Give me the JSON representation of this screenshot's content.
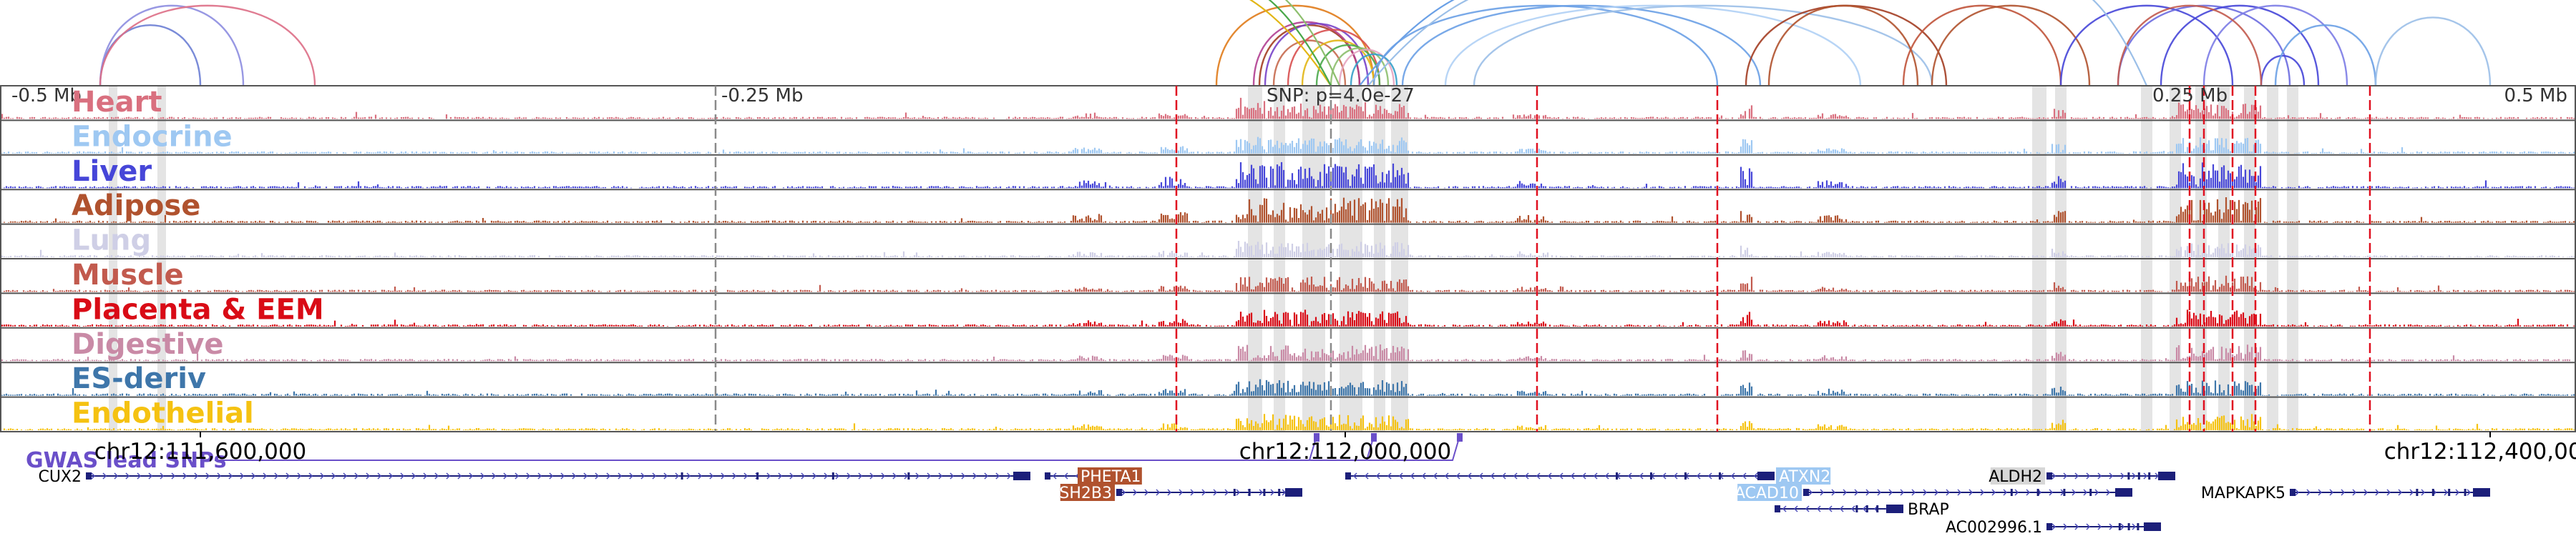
{
  "chart_data": {
    "type": "genome-browser",
    "chromosome": "chr12",
    "x_range": [
      111530000,
      112430000
    ],
    "axis_coordinate_labels": [
      {
        "pos": 111600000,
        "text": "chr12:111,600,000"
      },
      {
        "pos": 112000000,
        "text": "chr12:112,000,000"
      },
      {
        "pos": 112400000,
        "text": "chr12:112,400,000"
      }
    ],
    "relative_scale_labels": [
      {
        "pos": 111532000,
        "text": "-0.5 Mb"
      },
      {
        "pos": 111780000,
        "text": "-0.25 Mb"
      },
      {
        "pos": 112280000,
        "text": "0.25 Mb"
      },
      {
        "pos": 112425000,
        "text": "0.5 Mb"
      }
    ],
    "lead_snp_annotation": {
      "pos": 112030000,
      "text": "SNP: p=4.0e-27"
    },
    "tracks": [
      {
        "name": "Heart",
        "color": "#d9707f"
      },
      {
        "name": "Endocrine",
        "color": "#9ec8f2"
      },
      {
        "name": "Liver",
        "color": "#4646d8"
      },
      {
        "name": "Adipose",
        "color": "#b0522e"
      },
      {
        "name": "Lung",
        "color": "#cfcfe6"
      },
      {
        "name": "Muscle",
        "color": "#c25a4e"
      },
      {
        "name": "Placenta & EEM",
        "color": "#d90b16"
      },
      {
        "name": "Digestive",
        "color": "#c98aa6"
      },
      {
        "name": "ES-deriv",
        "color": "#3e76aa"
      },
      {
        "name": "Endothelial",
        "color": "#f5c211"
      }
    ],
    "red_dashed_lines": [
      111941000,
      112067000,
      112130000,
      112295000,
      112300000,
      112310000,
      112318000,
      112358000
    ],
    "gray_dashed_lines": [
      111780000,
      111995000
    ],
    "highlight_bands": [
      [
        111966000,
        111971000
      ],
      [
        111975000,
        111979000
      ],
      [
        111985000,
        111993000
      ],
      [
        111998000,
        112006000
      ],
      [
        112010000,
        112014000
      ],
      [
        112016000,
        112022000
      ],
      [
        112240000,
        112245000
      ],
      [
        112248000,
        112252000
      ],
      [
        112278000,
        112282000
      ],
      [
        112288000,
        112292000
      ],
      [
        112297000,
        112301000
      ],
      [
        112305000,
        112309000
      ],
      [
        112314000,
        112318000
      ],
      [
        112322000,
        112326000
      ],
      [
        112329000,
        112333000
      ],
      [
        111568000,
        111571000
      ],
      [
        111585000,
        111588000
      ]
    ],
    "gwas_lead_snps": {
      "label": "GWAS lead SNPs",
      "positions": [
        111990000,
        112010000,
        112040000
      ]
    },
    "genes": [
      {
        "name": "CUX2",
        "start": 111560000,
        "end": 111890000,
        "row": 0,
        "strand": "+",
        "label_side": "left",
        "highlight": ""
      },
      {
        "name": "PHETA1",
        "start": 111895000,
        "end": 111925000,
        "row": 0,
        "strand": "-",
        "label_side": "inside",
        "highlight": "#b0522e"
      },
      {
        "name": "SH2B3",
        "start": 111920000,
        "end": 111985000,
        "row": 1,
        "strand": "+",
        "label_side": "left",
        "highlight": "#b0522e"
      },
      {
        "name": "ATXN2",
        "start": 112000000,
        "end": 112150000,
        "row": 0,
        "strand": "-",
        "label_side": "right",
        "highlight": "#9ec8f2"
      },
      {
        "name": "ACAD10",
        "start": 112160000,
        "end": 112275000,
        "row": 1,
        "strand": "+",
        "label_side": "left",
        "highlight": "#9ec8f2"
      },
      {
        "name": "BRAP",
        "start": 112150000,
        "end": 112195000,
        "row": 2,
        "strand": "-",
        "label_side": "right",
        "highlight": ""
      },
      {
        "name": "ALDH2",
        "start": 112245000,
        "end": 112290000,
        "row": 0,
        "strand": "+",
        "label_side": "left",
        "highlight": "#d7d7d7"
      },
      {
        "name": "MAPKAPK5",
        "start": 112330000,
        "end": 112400000,
        "row": 1,
        "strand": "+",
        "label_side": "left",
        "highlight": ""
      },
      {
        "name": "AC002996.1",
        "start": 112245000,
        "end": 112285000,
        "row": 3,
        "strand": "+",
        "label_side": "left",
        "highlight": ""
      }
    ],
    "loops": [
      {
        "start": 111565000,
        "end": 111600000,
        "color": "#6b7ed4"
      },
      {
        "start": 111565000,
        "end": 111615000,
        "color": "#8d8de0"
      },
      {
        "start": 111565000,
        "end": 111640000,
        "color": "#dd6e86"
      },
      {
        "start": 111955000,
        "end": 112010000,
        "color": "#e07b1a"
      },
      {
        "start": 111970000,
        "end": 112005000,
        "color": "#a33d22"
      },
      {
        "start": 111975000,
        "end": 112000000,
        "color": "#c76a4f"
      },
      {
        "start": 111968000,
        "end": 112005000,
        "color": "#b13f91"
      },
      {
        "start": 111972000,
        "end": 112008000,
        "color": "#7742c9"
      },
      {
        "start": 111980000,
        "end": 112012000,
        "color": "#d84f4f"
      },
      {
        "start": 111985000,
        "end": 112010000,
        "color": "#e2b615"
      },
      {
        "start": 111990000,
        "end": 112012000,
        "color": "#4aa84a"
      },
      {
        "start": 111995000,
        "end": 112015000,
        "color": "#8dbf6e"
      },
      {
        "start": 111998000,
        "end": 112017000,
        "color": "#e5a4c0"
      },
      {
        "start": 112002000,
        "end": 112018000,
        "color": "#35a0c9"
      },
      {
        "start": 112010000,
        "end": 112130000,
        "color": "#6aa0e6"
      },
      {
        "start": 112020000,
        "end": 112145000,
        "color": "#6aa0e6"
      },
      {
        "start": 112035000,
        "end": 112180000,
        "color": "#b0d0f5"
      },
      {
        "start": 112045000,
        "end": 112205000,
        "color": "#9bbfe8"
      },
      {
        "start": 112140000,
        "end": 112210000,
        "color": "#a33d22"
      },
      {
        "start": 112148000,
        "end": 112200000,
        "color": "#b0522e"
      },
      {
        "start": 112195000,
        "end": 112250000,
        "color": "#c0533a"
      },
      {
        "start": 112205000,
        "end": 112260000,
        "color": "#b0522e"
      },
      {
        "start": 112250000,
        "end": 112310000,
        "color": "#4646d8"
      },
      {
        "start": 112270000,
        "end": 112330000,
        "color": "#6b6be0"
      },
      {
        "start": 112285000,
        "end": 112340000,
        "color": "#4646d8"
      },
      {
        "start": 112300000,
        "end": 112350000,
        "color": "#7c7ce6"
      },
      {
        "start": 112320000,
        "end": 112335000,
        "color": "#4646d8"
      },
      {
        "start": 112325000,
        "end": 112360000,
        "color": "#6aa0e6"
      },
      {
        "start": 112360000,
        "end": 112400000,
        "color": "#9bbfe8"
      },
      {
        "start": 112270000,
        "end": 112320000,
        "color": "#c25a4e"
      }
    ]
  }
}
